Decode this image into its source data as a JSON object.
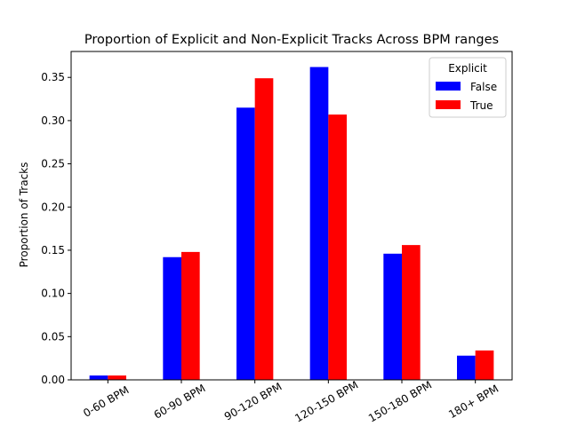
{
  "chart_data": {
    "type": "bar",
    "title": "Proportion of Explicit and Non-Explicit Tracks Across BPM ranges",
    "xlabel": "",
    "ylabel": "Proportion of Tracks",
    "categories": [
      "0-60 BPM",
      "60-90 BPM",
      "90-120 BPM",
      "120-150 BPM",
      "150-180 BPM",
      "180+ BPM"
    ],
    "series": [
      {
        "name": "False",
        "color": "#0000ff",
        "values": [
          0.005,
          0.142,
          0.315,
          0.362,
          0.146,
          0.028
        ]
      },
      {
        "name": "True",
        "color": "#ff0000",
        "values": [
          0.005,
          0.148,
          0.349,
          0.307,
          0.156,
          0.034
        ]
      }
    ],
    "ylim": [
      0,
      0.38
    ],
    "yticks": [
      "0.00",
      "0.05",
      "0.10",
      "0.15",
      "0.20",
      "0.25",
      "0.30",
      "0.35"
    ],
    "xtick_rotation": 30,
    "legend": {
      "title": "Explicit",
      "placement": "top-right"
    },
    "grid": false
  }
}
